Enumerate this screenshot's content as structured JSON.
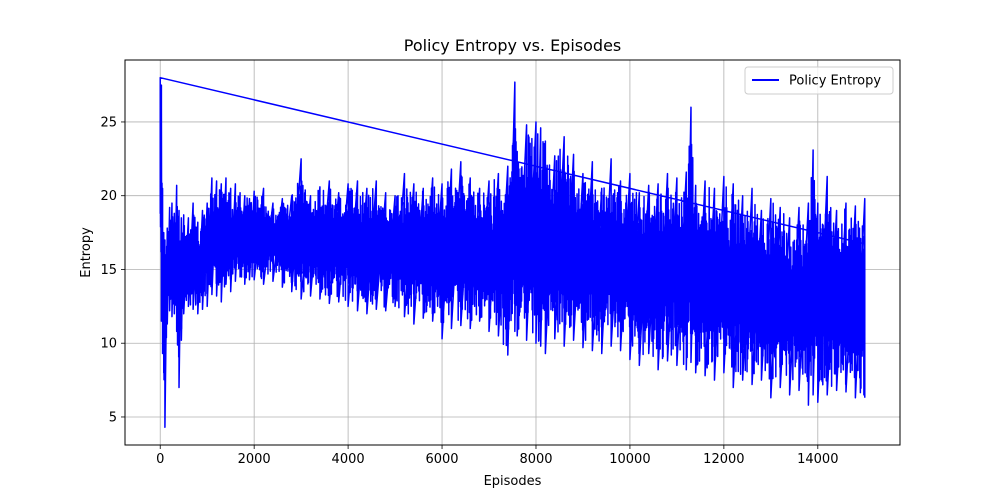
{
  "chart_data": {
    "type": "line",
    "title": "Policy Entropy vs. Episodes",
    "xlabel": "Episodes",
    "ylabel": "Entropy",
    "xlim": [
      -750,
      15750
    ],
    "ylim": [
      3.1,
      29.2
    ],
    "xticks": [
      0,
      2000,
      4000,
      6000,
      8000,
      10000,
      12000,
      14000
    ],
    "yticks": [
      5,
      10,
      15,
      20,
      25
    ],
    "grid": true,
    "legend_position": "top-right",
    "series": [
      {
        "name": "Policy Entropy",
        "color": "#0000ff",
        "x": [
          0,
          25,
          50,
          75,
          100,
          150,
          200,
          250,
          300,
          350,
          400,
          450,
          500,
          600,
          700,
          800,
          900,
          1000,
          1100,
          1200,
          1300,
          1400,
          1500,
          1600,
          1700,
          1800,
          1900,
          2000,
          2200,
          2400,
          2600,
          2800,
          3000,
          3200,
          3400,
          3600,
          3800,
          4000,
          4200,
          4400,
          4600,
          4800,
          5000,
          5200,
          5400,
          5600,
          5800,
          6000,
          6200,
          6400,
          6600,
          6800,
          7000,
          7200,
          7400,
          7550,
          7600,
          7800,
          8000,
          8100,
          8200,
          8400,
          8600,
          8800,
          9000,
          9200,
          9400,
          9600,
          9800,
          10000,
          10200,
          10400,
          10600,
          10800,
          11000,
          11200,
          11300,
          11400,
          11600,
          11800,
          12000,
          12200,
          12400,
          12600,
          12800,
          13000,
          13200,
          13400,
          13600,
          13800,
          13900,
          14000,
          14200,
          14400,
          14600,
          14800,
          15000
        ],
        "high": [
          28.0,
          27.5,
          20.5,
          17.5,
          17.0,
          17.8,
          19.2,
          19.5,
          18.8,
          20.7,
          19.0,
          18.5,
          18.7,
          18.5,
          19.5,
          18.2,
          19.0,
          19.5,
          21.2,
          21.0,
          20.8,
          21.2,
          20.5,
          20.8,
          20.2,
          20.0,
          19.8,
          20.3,
          20.5,
          19.5,
          19.8,
          20.0,
          22.5,
          20.0,
          20.6,
          21.0,
          20.2,
          20.8,
          21.0,
          20.5,
          21.0,
          20.2,
          20.0,
          21.5,
          20.8,
          20.5,
          21.2,
          20.8,
          21.8,
          22.3,
          21.2,
          20.5,
          21.0,
          21.5,
          22.0,
          27.7,
          23.0,
          24.8,
          25.0,
          24.6,
          23.7,
          22.7,
          24.0,
          22.8,
          21.5,
          22.3,
          20.5,
          22.5,
          21.0,
          21.5,
          20.2,
          20.7,
          20.8,
          21.5,
          21.2,
          21.6,
          26.0,
          20.7,
          21.0,
          20.5,
          21.3,
          20.8,
          20.0,
          20.5,
          19.0,
          19.8,
          19.2,
          18.5,
          19.2,
          19.5,
          23.1,
          19.5,
          21.3,
          19.0,
          19.5,
          19.3,
          19.8
        ],
        "low": [
          18.8,
          11.5,
          9.3,
          8.0,
          4.3,
          11.3,
          12.2,
          11.8,
          12.0,
          10.8,
          7.0,
          10.2,
          12.0,
          12.5,
          12.3,
          12.0,
          12.3,
          12.5,
          13.3,
          13.2,
          12.8,
          14.0,
          13.5,
          14.2,
          14.5,
          14.0,
          14.3,
          14.3,
          14.0,
          14.2,
          13.8,
          13.5,
          13.0,
          13.2,
          13.0,
          12.7,
          12.8,
          12.5,
          12.2,
          12.0,
          12.3,
          12.2,
          12.5,
          11.8,
          11.3,
          11.7,
          11.5,
          10.3,
          11.0,
          11.2,
          11.0,
          11.5,
          10.8,
          10.5,
          9.2,
          10.8,
          10.5,
          10.2,
          10.0,
          9.8,
          9.3,
          10.3,
          9.8,
          10.2,
          9.7,
          9.5,
          9.3,
          9.8,
          9.5,
          8.9,
          8.5,
          9.3,
          8.2,
          8.8,
          8.5,
          8.2,
          8.7,
          8.0,
          7.8,
          7.5,
          8.0,
          7.0,
          7.5,
          7.2,
          7.5,
          6.3,
          7.0,
          6.5,
          6.8,
          5.8,
          6.5,
          6.0,
          6.5,
          6.8,
          6.7,
          6.3,
          6.3
        ]
      }
    ]
  }
}
